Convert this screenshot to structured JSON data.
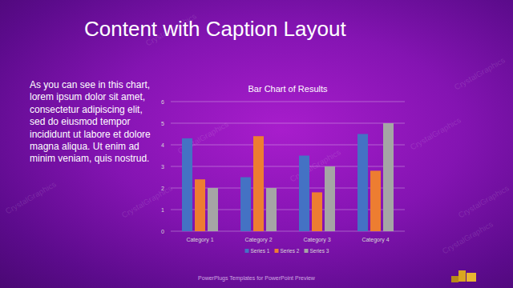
{
  "title": "Content with Caption Layout",
  "caption": "As you can see in this chart, lorem ipsum dolor sit amet, consectetur adipiscing elit, sed do eiusmod tempor incididunt ut labore et dolore magna aliqua. Ut enim ad minim veniam, quis nostrud.",
  "footer": "PowerPlugs Templates for PowerPoint Preview",
  "watermark": "CrystalGraphics",
  "chart_data": {
    "type": "bar",
    "title": "Bar Chart of Results",
    "categories": [
      "Category 1",
      "Category 2",
      "Category 3",
      "Category 4"
    ],
    "series": [
      {
        "name": "Series 1",
        "color": "#4472c4",
        "values": [
          4.3,
          2.5,
          3.5,
          4.5
        ]
      },
      {
        "name": "Series 2",
        "color": "#ed7d31",
        "values": [
          2.4,
          4.4,
          1.8,
          2.8
        ]
      },
      {
        "name": "Series 3",
        "color": "#a5a5a5",
        "values": [
          2,
          2,
          3,
          5
        ]
      }
    ],
    "ylim": [
      0,
      6
    ],
    "yticks": [
      0,
      1,
      2,
      3,
      4,
      5,
      6
    ],
    "grid": true,
    "legend": "bottom"
  }
}
